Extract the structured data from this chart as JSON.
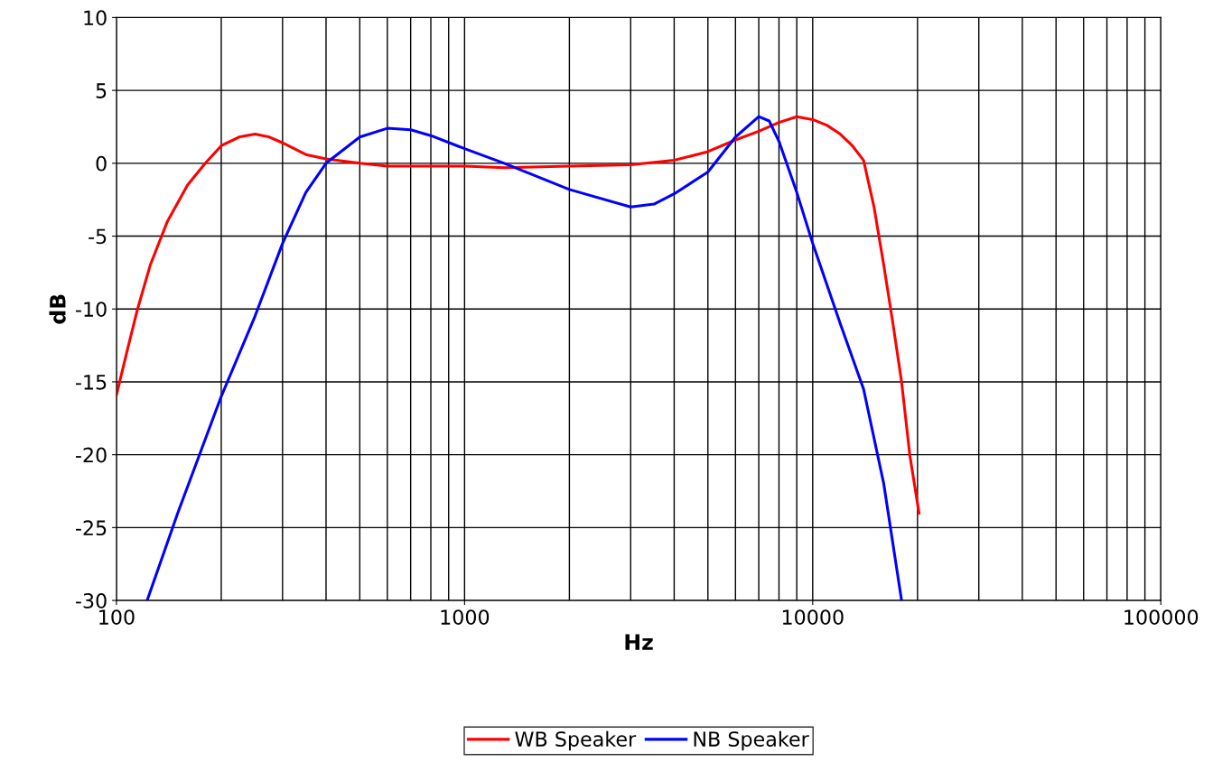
{
  "chart_data": {
    "type": "line",
    "xlabel": "Hz",
    "ylabel": "dB",
    "log": "x",
    "xlim": [
      100,
      100000
    ],
    "xticks": [
      100,
      1000,
      10000,
      100000
    ],
    "ylim": [
      -30,
      10
    ],
    "yticks": [
      -30,
      -25,
      -20,
      -15,
      -10,
      -5,
      0,
      5,
      10
    ],
    "grid": true,
    "legend": "bottom",
    "marker": "none",
    "line_style": "solid",
    "series": [
      {
        "name": "WB Speaker",
        "color": "#ff0000",
        "x": [
          100,
          107,
          115,
          125,
          140,
          160,
          180,
          200,
          225,
          250,
          275,
          300,
          350,
          400,
          500,
          600,
          800,
          1000,
          1300,
          2000,
          3000,
          4000,
          5000,
          6000,
          7000,
          8000,
          9000,
          10000,
          11000,
          12000,
          13000,
          14000,
          15000,
          16000,
          17000,
          18000,
          19000,
          20200
        ],
        "values": [
          -15.9,
          -13,
          -10,
          -7,
          -4,
          -1.5,
          0,
          1.2,
          1.8,
          2.0,
          1.8,
          1.4,
          0.6,
          0.3,
          0,
          -0.2,
          -0.2,
          -0.2,
          -0.3,
          -0.2,
          -0.1,
          0.2,
          0.8,
          1.6,
          2.2,
          2.8,
          3.2,
          3.0,
          2.6,
          2.0,
          1.2,
          0.2,
          -3,
          -7,
          -11,
          -15,
          -20,
          -24
        ]
      },
      {
        "name": "NB Speaker",
        "color": "#0000ff",
        "x": [
          122.5,
          150,
          200,
          250,
          300,
          350,
          400,
          500,
          600,
          700,
          800,
          1000,
          1300,
          2000,
          3000,
          3500,
          4000,
          5000,
          6000,
          7000,
          7500,
          8000,
          9000,
          10000,
          12000,
          14000,
          16000,
          18000
        ],
        "values": [
          -30,
          -24,
          -16,
          -10.5,
          -5.5,
          -2,
          0,
          1.8,
          2.4,
          2.3,
          1.9,
          1.0,
          0,
          -1.8,
          -3.0,
          -2.8,
          -2.1,
          -0.6,
          1.8,
          3.2,
          2.9,
          1.5,
          -2,
          -5.5,
          -11,
          -15.5,
          -22,
          -30
        ]
      }
    ]
  }
}
